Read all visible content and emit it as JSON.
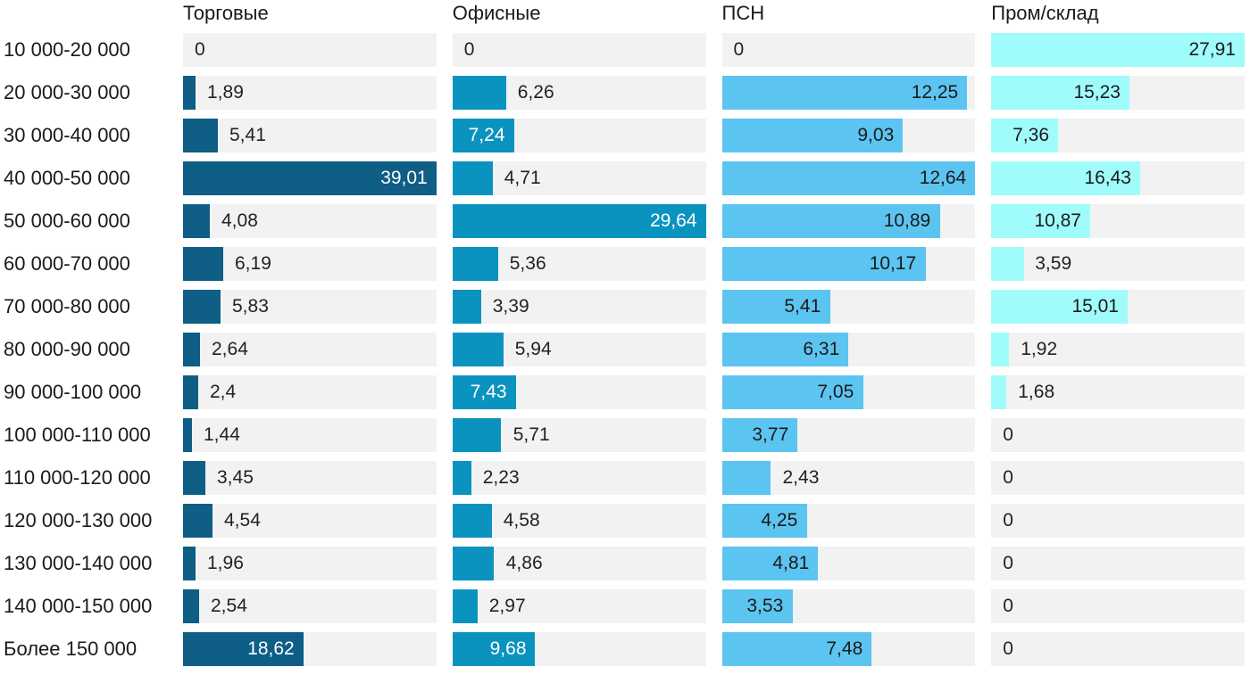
{
  "chart_data": {
    "type": "bar",
    "orientation": "horizontal",
    "layout": "small-multiples, 4 columns, shared category axis on left",
    "title": "",
    "xlabel": "",
    "ylabel": "",
    "grid": false,
    "legend_position": "column headers on top",
    "value_scale": "per-column: max value fills full track width",
    "decimal_separator": ",",
    "background": "#ffffff",
    "track_color": "#f2f2f2",
    "text_color": "#1a1a1a",
    "value_text_color": "#222222",
    "categories": [
      "10 000-20 000",
      "20 000-30 000",
      "30 000-40 000",
      "40 000-50 000",
      "50 000-60 000",
      "60 000-70 000",
      "70 000-80 000",
      "80 000-90 000",
      "90 000-100 000",
      "100 000-110 000",
      "110 000-120 000",
      "120 000-130 000",
      "130 000-140 000",
      "140 000-150 000",
      "Более 150 000"
    ],
    "series": [
      {
        "name": "Торговые",
        "color": "#0e5e86",
        "inside_label_color": "#ffffff",
        "values": [
          0,
          1.89,
          5.41,
          39.01,
          4.08,
          6.19,
          5.83,
          2.64,
          2.4,
          1.44,
          3.45,
          4.54,
          1.96,
          2.54,
          18.62
        ]
      },
      {
        "name": "Офисные",
        "color": "#0b93bf",
        "inside_label_color": "#ffffff",
        "values": [
          0,
          6.26,
          7.24,
          4.71,
          29.64,
          5.36,
          3.39,
          5.94,
          7.43,
          5.71,
          2.23,
          4.58,
          4.86,
          2.97,
          9.68
        ]
      },
      {
        "name": "ПСН",
        "color": "#5cc4f0",
        "inside_label_color": "#1a1a1a",
        "values": [
          0,
          12.25,
          9.03,
          12.64,
          10.89,
          10.17,
          5.41,
          6.31,
          7.05,
          3.77,
          2.43,
          4.25,
          4.81,
          3.53,
          7.48
        ]
      },
      {
        "name": "Пром/склад",
        "color": "#a0fcfa",
        "inside_label_color": "#1a1a1a",
        "values": [
          27.91,
          15.23,
          7.36,
          16.43,
          10.87,
          3.59,
          15.01,
          1.92,
          1.68,
          0,
          0,
          0,
          0,
          0,
          0
        ]
      }
    ]
  }
}
